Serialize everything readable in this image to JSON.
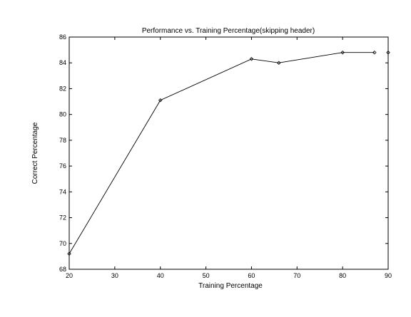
{
  "chart_data": {
    "type": "line",
    "title": "Performance vs. Training Percentage(skipping header)",
    "xlabel": "Training Percentage",
    "ylabel": "Correct Percentage",
    "xlim": [
      20,
      90
    ],
    "ylim": [
      68,
      86
    ],
    "xticks": [
      20,
      30,
      40,
      50,
      60,
      70,
      80,
      90
    ],
    "yticks": [
      68,
      70,
      72,
      74,
      76,
      78,
      80,
      82,
      84,
      86
    ],
    "grid": false,
    "legend": "none",
    "series": [
      {
        "x": [
          20,
          40,
          60,
          66,
          80,
          87
        ],
        "y": [
          69.2,
          81.1,
          84.3,
          84.0,
          84.8,
          84.8
        ]
      },
      {
        "x": [
          90
        ],
        "y": [
          84.8
        ]
      }
    ],
    "colors": {
      "line": "#000000",
      "axes": "#000000",
      "background": "#ffffff"
    }
  }
}
